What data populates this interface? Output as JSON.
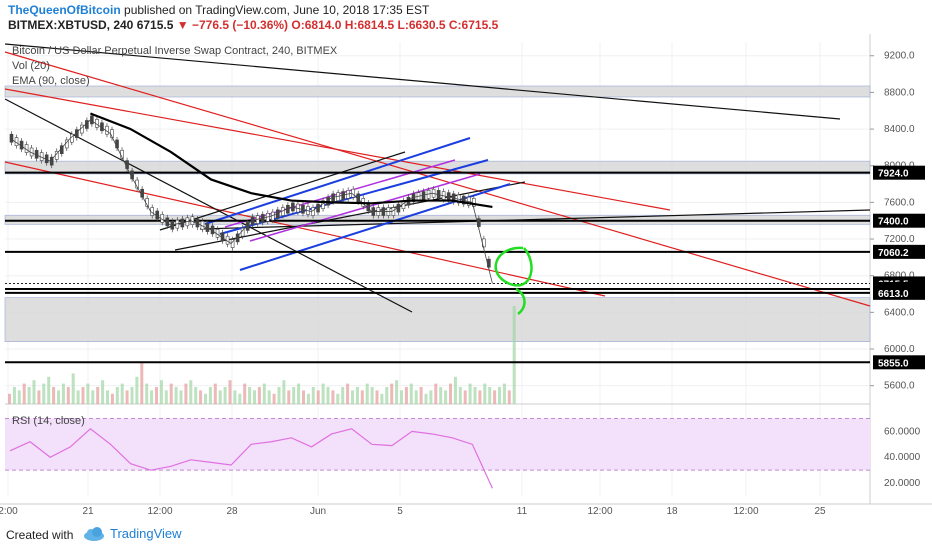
{
  "header": {
    "author": "TheQueenOfBitcoin",
    "published_text": "published on TradingView.com, June 10, 2018 17:35 EST",
    "symbol_line": "BITMEX:XBTUSD, 240",
    "last": "6715.5",
    "change_icon": "triangle-down-icon",
    "change": "−776.5 (−10.36%)",
    "ohlc_o": "O:6814.0",
    "ohlc_h": "H:6814.5",
    "ohlc_l": "L:6630.5",
    "ohlc_c": "C:6715.5"
  },
  "legend": {
    "instrument": "Bitcoin / US Dollar Perpetual Inverse Swap Contract, 240, BITMEX",
    "vol": "Vol (20)",
    "ema": "EMA (90, close)",
    "rsi": "RSI (14, close)"
  },
  "footer": {
    "created_with": "Created with",
    "brand": "TradingView"
  },
  "colors": {
    "up": "#9fd6a4",
    "down": "#e59a9a",
    "price": "#444444",
    "ema": "#000000",
    "red_line": "#e02020",
    "blue_line": "#1a3ee0",
    "purple_line": "#b030e0",
    "green_marker": "#22dd22",
    "rsi_line": "#e070e0",
    "rsi_band": "#f3e0fb",
    "zone": "#d8d8d8"
  },
  "chart_data": {
    "type": "line",
    "title": "Bitcoin / US Dollar Perpetual Inverse Swap Contract, 240, BITMEX",
    "xlabel": "",
    "ylabel": "",
    "x_tick_labels": [
      "2:00",
      "21",
      "12:00",
      "28",
      "Jun",
      "5",
      "11",
      "12:00",
      "18",
      "12:00",
      "25"
    ],
    "y_tick_labels": [
      "9200.0",
      "8800.0",
      "8400.0",
      "8000.0",
      "7600.0",
      "7200.0",
      "6800.0",
      "6400.0",
      "6000.0",
      "5600.0"
    ],
    "ylim": [
      5400,
      9350
    ],
    "grid": true,
    "series": [
      {
        "name": "XBTUSD",
        "x": [
          "May 17",
          "May 18",
          "May 19",
          "May 20",
          "May 21",
          "May 22",
          "May 23",
          "May 24",
          "May 25",
          "May 26",
          "May 27",
          "May 28",
          "May 29",
          "May 30",
          "May 31",
          "Jun 1",
          "Jun 2",
          "Jun 3",
          "Jun 4",
          "Jun 5",
          "Jun 6",
          "Jun 7",
          "Jun 8",
          "Jun 9",
          "Jun 10"
        ],
        "y": [
          8300,
          8150,
          8050,
          8300,
          8500,
          8350,
          7900,
          7500,
          7350,
          7400,
          7300,
          7150,
          7400,
          7450,
          7550,
          7500,
          7650,
          7700,
          7500,
          7500,
          7650,
          7700,
          7650,
          7600,
          6715.5
        ]
      },
      {
        "name": "EMA (90, close)",
        "x": [
          "May 21",
          "May 23",
          "May 25",
          "May 27",
          "May 29",
          "May 31",
          "Jun 2",
          "Jun 4",
          "Jun 6",
          "Jun 8",
          "Jun 10"
        ],
        "y": [
          8570,
          8400,
          8150,
          7850,
          7700,
          7620,
          7600,
          7590,
          7620,
          7620,
          7550
        ]
      }
    ],
    "levels": [
      {
        "label": "7924.0",
        "value": 7924,
        "color": "#000000"
      },
      {
        "label": "7400.0",
        "value": 7400,
        "color": "#000000"
      },
      {
        "label": "7060.2",
        "value": 7060.2,
        "color": "#000000"
      },
      {
        "label": "6715.5",
        "value": 6715.5,
        "color": "#000000"
      },
      {
        "label": "01:24:34",
        "value": 6655,
        "color": "#000000"
      },
      {
        "label": "6613.0",
        "value": 6613,
        "color": "#000000"
      },
      {
        "label": "5855.0",
        "value": 5855,
        "color": "#000000"
      }
    ],
    "rsi": {
      "name": "RSI (14, close)",
      "tick_labels": [
        "60.0000",
        "40.0000",
        "20.0000"
      ],
      "ylim": [
        10,
        75
      ],
      "band": [
        30,
        70
      ],
      "x": [
        "May 17",
        "May 18",
        "May 19",
        "May 20",
        "May 21",
        "May 22",
        "May 23",
        "May 24",
        "May 25",
        "May 26",
        "May 27",
        "May 28",
        "May 29",
        "May 30",
        "May 31",
        "Jun 1",
        "Jun 2",
        "Jun 3",
        "Jun 4",
        "Jun 5",
        "Jun 6",
        "Jun 7",
        "Jun 8",
        "Jun 9",
        "Jun 10"
      ],
      "values": [
        45,
        52,
        40,
        48,
        62,
        50,
        35,
        30,
        33,
        38,
        36,
        34,
        50,
        52,
        55,
        48,
        58,
        62,
        50,
        49,
        60,
        58,
        55,
        50,
        16
      ]
    }
  }
}
